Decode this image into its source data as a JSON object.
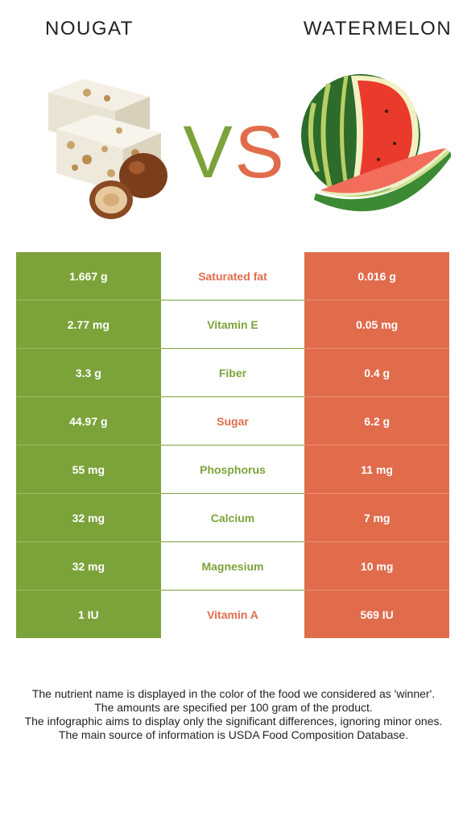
{
  "header": {
    "left_title": "NOUGAT",
    "right_title": "WATERMELON"
  },
  "colors": {
    "left": "#7ca33a",
    "right": "#e06c4c"
  },
  "images": {
    "left_icon": "nougat-hazelnut-image",
    "right_icon": "watermelon-image"
  },
  "vs": {
    "left_letter": "V",
    "right_letter": "S"
  },
  "rows": [
    {
      "left": "1.667 g",
      "nutrient": "Saturated fat",
      "right": "0.016 g",
      "winner": "right"
    },
    {
      "left": "2.77 mg",
      "nutrient": "Vitamin E",
      "right": "0.05 mg",
      "winner": "left"
    },
    {
      "left": "3.3 g",
      "nutrient": "Fiber",
      "right": "0.4 g",
      "winner": "left"
    },
    {
      "left": "44.97 g",
      "nutrient": "Sugar",
      "right": "6.2 g",
      "winner": "right"
    },
    {
      "left": "55 mg",
      "nutrient": "Phosphorus",
      "right": "11 mg",
      "winner": "left"
    },
    {
      "left": "32 mg",
      "nutrient": "Calcium",
      "right": "7 mg",
      "winner": "left"
    },
    {
      "left": "32 mg",
      "nutrient": "Magnesium",
      "right": "10 mg",
      "winner": "left"
    },
    {
      "left": "1 IU",
      "nutrient": "Vitamin A",
      "right": "569 IU",
      "winner": "right"
    }
  ],
  "footer": {
    "line1": "The nutrient name is displayed in the color of the food we considered as 'winner'.",
    "line2": "The amounts are specified per 100 gram of the product.",
    "line3": "The infographic aims to display only the significant differences, ignoring minor ones.",
    "line4": "The main source of information is USDA Food Composition Database."
  }
}
